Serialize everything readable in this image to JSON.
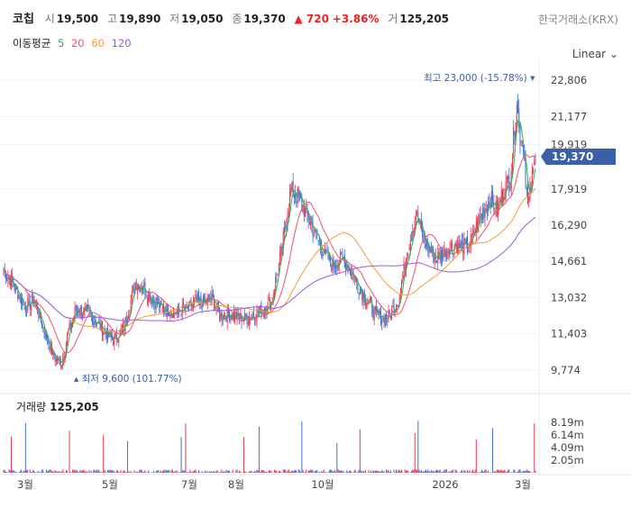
{
  "header": {
    "name": "코칩",
    "open_label": "시",
    "open": "19,500",
    "high_label": "고",
    "high": "19,890",
    "low_label": "저",
    "low": "19,050",
    "close_label": "종",
    "close": "19,370",
    "change": "▲ 720",
    "change_pct": "+3.86%",
    "volume_label": "거",
    "volume": "125,205",
    "exchange": "한국거래소(KRX)"
  },
  "ma_legend": {
    "title": "이동평균",
    "p5": "5",
    "p20": "20",
    "p60": "60",
    "p120": "120"
  },
  "scale_mode": "Linear",
  "volume_header": {
    "label": "거래량",
    "value": "125,205"
  },
  "colors": {
    "up": "#e8384f",
    "down": "#3b6fd8",
    "ma5": "#2fae52",
    "ma20": "#f0506e",
    "ma60": "#f39c3c",
    "ma120": "#9b59e6",
    "last_price_bg": "#3b5fa8"
  },
  "chart_data": {
    "type": "candlestick",
    "y_ticks": [
      "22,806",
      "21,177",
      "19,919",
      "17,919",
      "16,290",
      "14,661",
      "13,032",
      "11,403",
      "9,774"
    ],
    "y_tick_values": [
      22806,
      21177,
      19919,
      17919,
      16290,
      14661,
      13032,
      11403,
      9774
    ],
    "ylim": [
      9000,
      23500
    ],
    "last_price": "19,370",
    "last_price_value": 19370,
    "high_annotation": "최고 23,000 (-15.78%)",
    "low_annotation": "최저 9,600 (101.77%)",
    "x_labels": [
      "3월",
      "5월",
      "7월",
      "8월",
      "10월",
      "2026",
      "3월"
    ],
    "volume_ticks": [
      "8.19m",
      "6.14m",
      "4.09m",
      "2.05m"
    ],
    "volume_tick_values": [
      8190000,
      6140000,
      4090000,
      2050000
    ],
    "volume_max": 9500000,
    "close_keypoints": [
      [
        0,
        14300
      ],
      [
        10,
        13500
      ],
      [
        20,
        12600
      ],
      [
        28,
        12900
      ],
      [
        38,
        11400
      ],
      [
        46,
        10300
      ],
      [
        53,
        10100
      ],
      [
        58,
        11300
      ],
      [
        66,
        12500
      ],
      [
        78,
        12300
      ],
      [
        90,
        11600
      ],
      [
        100,
        11100
      ],
      [
        110,
        11700
      ],
      [
        120,
        13700
      ],
      [
        128,
        13500
      ],
      [
        136,
        12900
      ],
      [
        146,
        12500
      ],
      [
        158,
        12400
      ],
      [
        168,
        12500
      ],
      [
        175,
        12900
      ],
      [
        182,
        12800
      ],
      [
        190,
        13000
      ],
      [
        198,
        12200
      ],
      [
        205,
        12300
      ],
      [
        218,
        12100
      ],
      [
        230,
        12300
      ],
      [
        244,
        12800
      ],
      [
        253,
        15000
      ],
      [
        262,
        17900
      ],
      [
        270,
        17400
      ],
      [
        280,
        16400
      ],
      [
        290,
        15200
      ],
      [
        300,
        14500
      ],
      [
        310,
        14800
      ],
      [
        320,
        13900
      ],
      [
        330,
        13000
      ],
      [
        340,
        12200
      ],
      [
        350,
        12100
      ],
      [
        360,
        12900
      ],
      [
        368,
        15100
      ],
      [
        376,
        16800
      ],
      [
        384,
        15500
      ],
      [
        394,
        14800
      ],
      [
        404,
        15200
      ],
      [
        414,
        15400
      ],
      [
        424,
        15300
      ],
      [
        434,
        16600
      ],
      [
        444,
        17500
      ],
      [
        450,
        16900
      ],
      [
        456,
        17900
      ],
      [
        462,
        18400
      ],
      [
        466,
        20800
      ],
      [
        468,
        22000
      ],
      [
        470,
        20500
      ],
      [
        474,
        19900
      ],
      [
        478,
        17100
      ],
      [
        482,
        18400
      ],
      [
        485,
        19370
      ]
    ],
    "n_candles": 486
  }
}
